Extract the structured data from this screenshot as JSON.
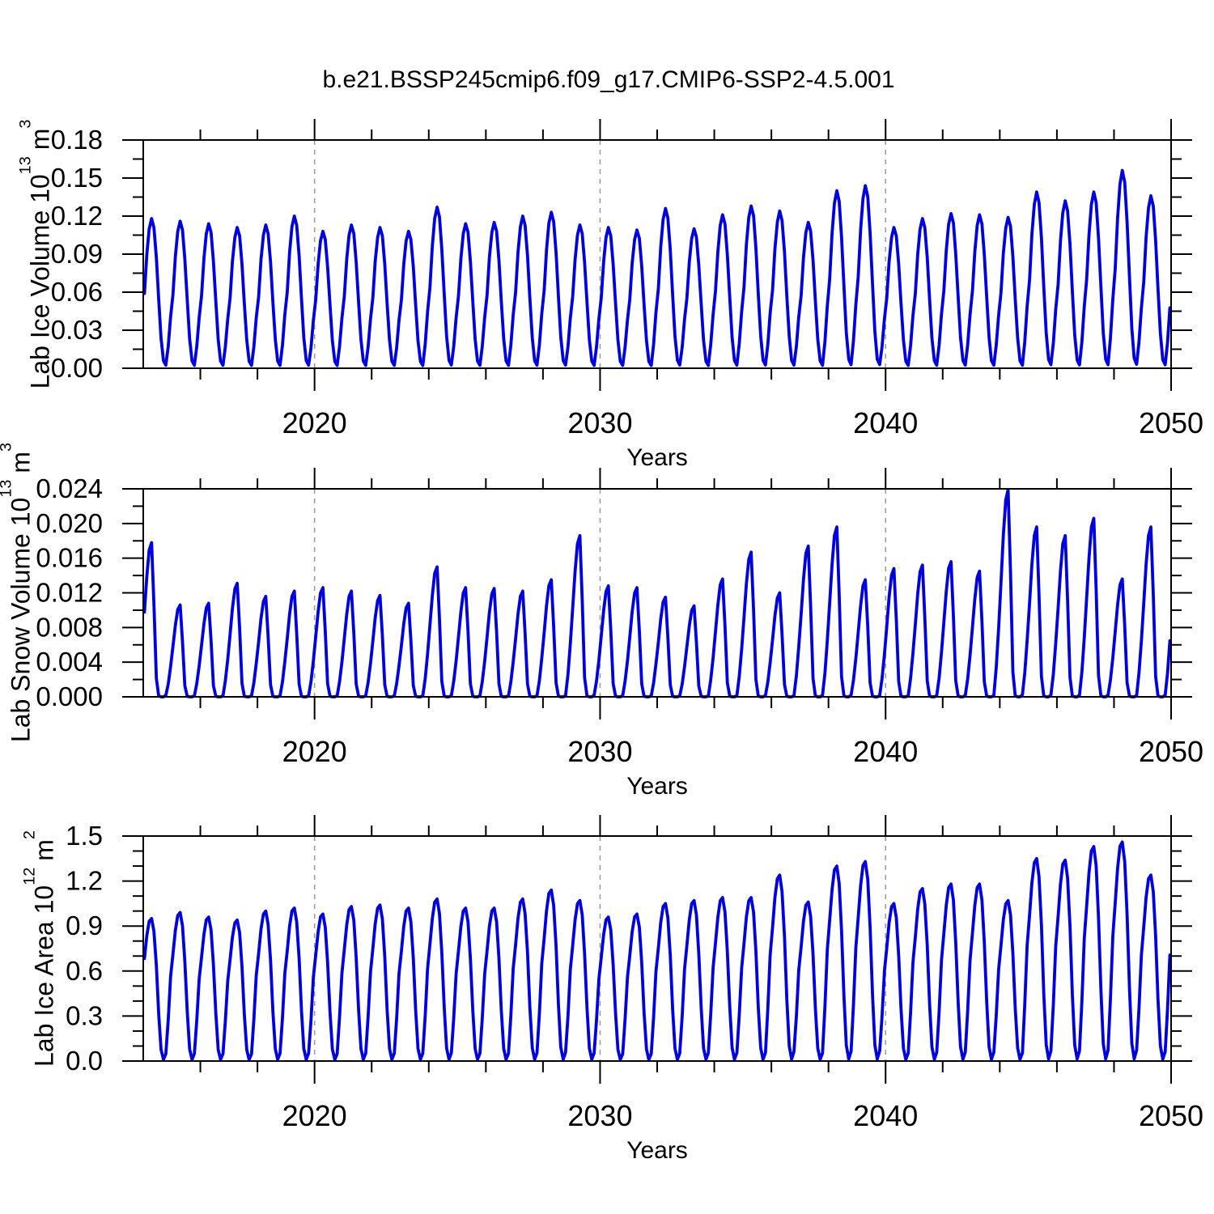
{
  "title": "b.e21.BSSP245cmip6.f09_g17.CMIP6-SSP2-4.5.001",
  "line_color": "#0000dd",
  "grid_color": "#999999",
  "axis_color": "#000000",
  "chart_data": [
    {
      "type": "line",
      "name": "lab-ice-volume",
      "ylabel": {
        "text": "Lab Ice Volume 10",
        "exp": "13",
        "unit": "m",
        "unit_exp": "3"
      },
      "xlabel": "Years",
      "ylim": [
        0,
        0.18
      ],
      "yticks": [
        0,
        0.03,
        0.06,
        0.09,
        0.12,
        0.15,
        0.18
      ],
      "ytick_labels": [
        "0.00",
        "0.03",
        "0.06",
        "0.09",
        "0.12",
        "0.15",
        "0.18"
      ],
      "ytick_minor_step": 0.015,
      "xlim": [
        2014,
        2050
      ],
      "xticks": [
        2020,
        2030,
        2040,
        2050
      ],
      "xtick_labels": [
        "2020",
        "2030",
        "2040",
        "2050"
      ],
      "xtick_minor_step": 2,
      "grid_x": [
        2020,
        2030,
        2040
      ],
      "legend": "none",
      "series": {
        "note": "Monthly seasonal cycle oscillating between ~0 and the annual spring maximum",
        "years": [
          2014,
          2015,
          2016,
          2017,
          2018,
          2019,
          2020,
          2021,
          2022,
          2023,
          2024,
          2025,
          2026,
          2027,
          2028,
          2029,
          2030,
          2031,
          2032,
          2033,
          2034,
          2035,
          2036,
          2037,
          2038,
          2039,
          2040,
          2041,
          2042,
          2043,
          2044,
          2045,
          2046,
          2047,
          2048,
          2049
        ],
        "annual_max": [
          0.118,
          0.116,
          0.114,
          0.111,
          0.113,
          0.12,
          0.108,
          0.113,
          0.111,
          0.108,
          0.127,
          0.114,
          0.115,
          0.12,
          0.123,
          0.113,
          0.111,
          0.109,
          0.126,
          0.11,
          0.121,
          0.128,
          0.124,
          0.115,
          0.14,
          0.144,
          0.111,
          0.118,
          0.122,
          0.121,
          0.119,
          0.139,
          0.132,
          0.139,
          0.156,
          0.136
        ],
        "annual_min_approx": 0.002,
        "monthly_shape": [
          0.5,
          0.76,
          0.93,
          1.0,
          0.94,
          0.74,
          0.46,
          0.2,
          0.05,
          0.02,
          0.15,
          0.35
        ],
        "rise_from_month": 10
      }
    },
    {
      "type": "line",
      "name": "lab-snow-volume",
      "ylabel": {
        "text": "Lab Snow Volume 10",
        "exp": "13",
        "unit": "m",
        "unit_exp": "3"
      },
      "xlabel": "Years",
      "ylim": [
        0,
        0.024
      ],
      "yticks": [
        0,
        0.004,
        0.008,
        0.012,
        0.016,
        0.02,
        0.024
      ],
      "ytick_labels": [
        "0.000",
        "0.004",
        "0.008",
        "0.012",
        "0.016",
        "0.020",
        "0.024"
      ],
      "ytick_minor_step": 0.002,
      "xlim": [
        2014,
        2050
      ],
      "xticks": [
        2020,
        2030,
        2040,
        2050
      ],
      "xtick_labels": [
        "2020",
        "2030",
        "2040",
        "2050"
      ],
      "xtick_minor_step": 2,
      "grid_x": [
        2020,
        2030,
        2040
      ],
      "legend": "none",
      "series": {
        "note": "Monthly seasonal cycle; flat near zero in summer months",
        "years": [
          2014,
          2015,
          2016,
          2017,
          2018,
          2019,
          2020,
          2021,
          2022,
          2023,
          2024,
          2025,
          2026,
          2027,
          2028,
          2029,
          2030,
          2031,
          2032,
          2033,
          2034,
          2035,
          2036,
          2037,
          2038,
          2039,
          2040,
          2041,
          2042,
          2043,
          2044,
          2045,
          2046,
          2047,
          2048,
          2049
        ],
        "annual_max": [
          0.0178,
          0.0106,
          0.0108,
          0.0131,
          0.0116,
          0.0122,
          0.0126,
          0.0122,
          0.0117,
          0.0108,
          0.015,
          0.0126,
          0.0125,
          0.0122,
          0.0135,
          0.0186,
          0.0128,
          0.0126,
          0.0115,
          0.0105,
          0.0136,
          0.0167,
          0.012,
          0.0174,
          0.0196,
          0.0135,
          0.0148,
          0.0152,
          0.0156,
          0.0145,
          0.0239,
          0.0196,
          0.0186,
          0.0206,
          0.0136,
          0.0196
        ],
        "annual_min_approx": 0.0,
        "monthly_shape": [
          0.55,
          0.78,
          0.95,
          1.0,
          0.6,
          0.12,
          0.005,
          0.0,
          0.0,
          0.01,
          0.14,
          0.33
        ],
        "rise_from_month": 10
      }
    },
    {
      "type": "line",
      "name": "lab-ice-area",
      "ylabel": {
        "text": "Lab Ice Area 10",
        "exp": "12",
        "unit": "m",
        "unit_exp": "2"
      },
      "xlabel": "Years",
      "ylim": [
        0,
        1.5
      ],
      "yticks": [
        0,
        0.3,
        0.6,
        0.9,
        1.2,
        1.5
      ],
      "ytick_labels": [
        "0.0",
        "0.3",
        "0.6",
        "0.9",
        "1.2",
        "1.5"
      ],
      "ytick_minor_step": 0.1,
      "xlim": [
        2014,
        2050
      ],
      "xticks": [
        2020,
        2030,
        2040,
        2050
      ],
      "xtick_labels": [
        "2020",
        "2030",
        "2040",
        "2050"
      ],
      "xtick_minor_step": 2,
      "grid_x": [
        2020,
        2030,
        2040
      ],
      "legend": "none",
      "series": {
        "note": "Monthly seasonal cycle with broad winter plateau and narrow summer minimum",
        "years": [
          2014,
          2015,
          2016,
          2017,
          2018,
          2019,
          2020,
          2021,
          2022,
          2023,
          2024,
          2025,
          2026,
          2027,
          2028,
          2029,
          2030,
          2031,
          2032,
          2033,
          2034,
          2035,
          2036,
          2037,
          2038,
          2039,
          2040,
          2041,
          2042,
          2043,
          2044,
          2045,
          2046,
          2047,
          2048,
          2049
        ],
        "annual_max": [
          0.95,
          0.99,
          0.96,
          0.94,
          1.0,
          1.02,
          0.98,
          1.03,
          1.04,
          1.02,
          1.08,
          1.02,
          1.02,
          1.08,
          1.14,
          1.07,
          0.96,
          0.98,
          1.05,
          1.07,
          1.09,
          1.09,
          1.24,
          1.06,
          1.3,
          1.33,
          1.05,
          1.15,
          1.18,
          1.18,
          1.07,
          1.35,
          1.34,
          1.43,
          1.46,
          1.24
        ],
        "annual_min_approx": 0.01,
        "monthly_shape": [
          0.72,
          0.88,
          0.98,
          1.0,
          0.91,
          0.67,
          0.33,
          0.08,
          0.01,
          0.05,
          0.28,
          0.57
        ],
        "rise_from_month": 10
      }
    }
  ]
}
